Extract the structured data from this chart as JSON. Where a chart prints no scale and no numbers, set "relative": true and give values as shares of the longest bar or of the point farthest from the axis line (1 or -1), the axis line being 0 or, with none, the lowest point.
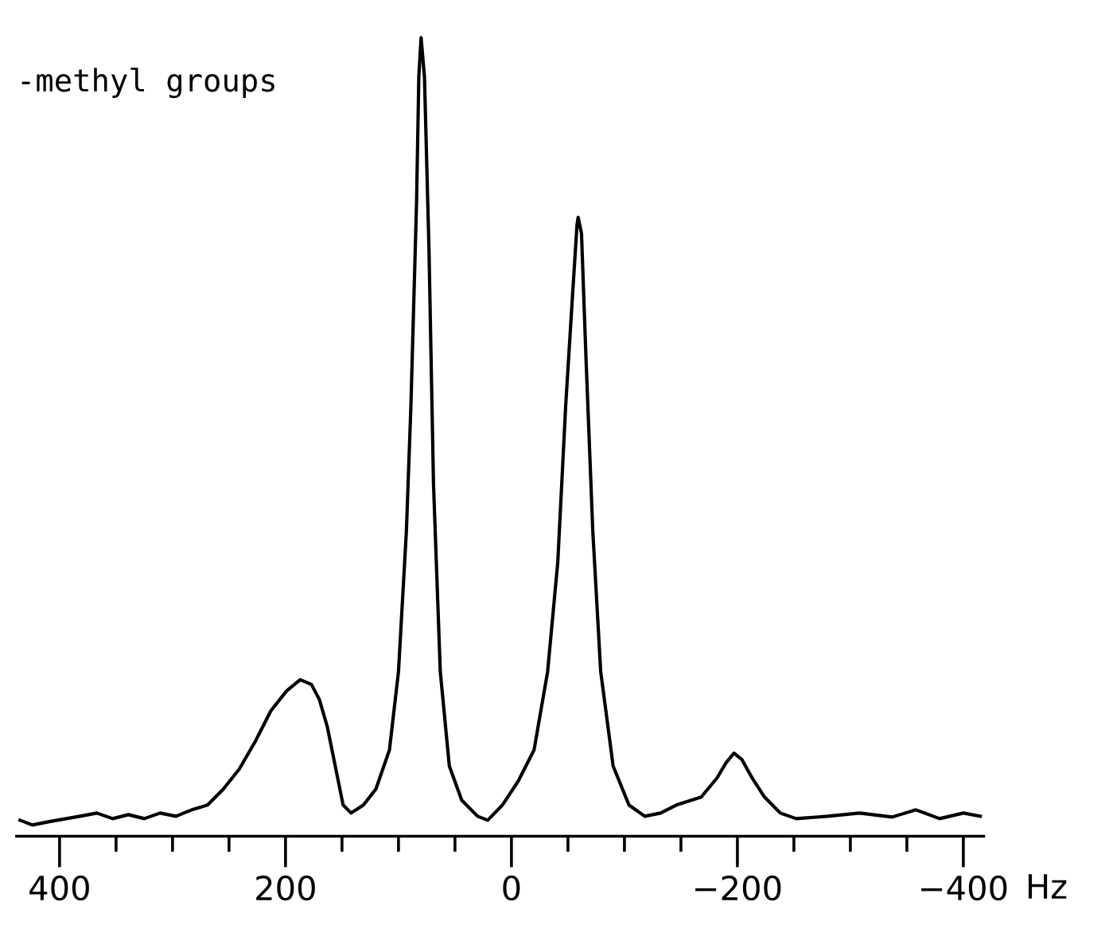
{
  "chart_data": {
    "type": "line",
    "relative": true,
    "xlabel": "Hz",
    "annotations": [
      "-methyl groups"
    ],
    "grid": false,
    "legend": false,
    "marker": "none",
    "line_style": "solid",
    "tick_labels": "x",
    "xlim": [
      438,
      -418
    ],
    "xticks": [
      400,
      {
        "value": 350,
        "label": null
      },
      {
        "value": 300,
        "label": null
      },
      {
        "value": 250,
        "label": null
      },
      200,
      {
        "value": 150,
        "label": null
      },
      {
        "value": 100,
        "label": null
      },
      {
        "value": 50,
        "label": null
      },
      0,
      {
        "value": -50,
        "label": null
      },
      {
        "value": -100,
        "label": null
      },
      {
        "value": -150,
        "label": null
      },
      {
        "value": -200,
        "label": "−200"
      },
      {
        "value": -250,
        "label": null
      },
      {
        "value": -300,
        "label": null
      },
      {
        "value": -350,
        "label": null
      },
      {
        "value": -400,
        "label": "−400"
      }
    ],
    "series": [
      {
        "color": "#000000",
        "x": [
          435,
          424,
          410,
          382,
          367,
          353,
          339,
          325,
          311,
          297,
          283,
          269,
          255,
          241,
          227,
          213,
          199,
          187,
          177,
          170,
          163,
          156,
          149,
          142,
          131,
          120,
          108,
          100,
          93,
          89,
          84,
          82,
          80,
          77,
          73,
          69,
          63,
          55,
          44,
          30,
          21,
          8,
          -6,
          -20,
          -32,
          -41,
          -48,
          -54,
          -58,
          -59,
          -62,
          -66,
          -72,
          -79,
          -90,
          -104,
          -118,
          -132,
          -146,
          -168,
          -182,
          -190,
          -197,
          -204,
          -213,
          -224,
          -238,
          -252,
          -280,
          -308,
          -337,
          -358,
          -379,
          -400,
          -415
        ],
        "values": [
          0.02,
          0.014,
          0.018,
          0.025,
          0.029,
          0.022,
          0.027,
          0.022,
          0.029,
          0.025,
          0.033,
          0.039,
          0.059,
          0.084,
          0.118,
          0.157,
          0.182,
          0.196,
          0.19,
          0.171,
          0.137,
          0.088,
          0.039,
          0.029,
          0.039,
          0.059,
          0.108,
          0.206,
          0.382,
          0.539,
          0.794,
          0.951,
          1,
          0.951,
          0.735,
          0.441,
          0.206,
          0.088,
          0.045,
          0.025,
          0.02,
          0.039,
          0.069,
          0.108,
          0.206,
          0.343,
          0.539,
          0.676,
          0.765,
          0.775,
          0.755,
          0.598,
          0.382,
          0.206,
          0.088,
          0.039,
          0.025,
          0.029,
          0.039,
          0.049,
          0.073,
          0.092,
          0.104,
          0.096,
          0.073,
          0.049,
          0.029,
          0.022,
          0.025,
          0.029,
          0.024,
          0.033,
          0.022,
          0.029,
          0.025
        ]
      }
    ]
  }
}
